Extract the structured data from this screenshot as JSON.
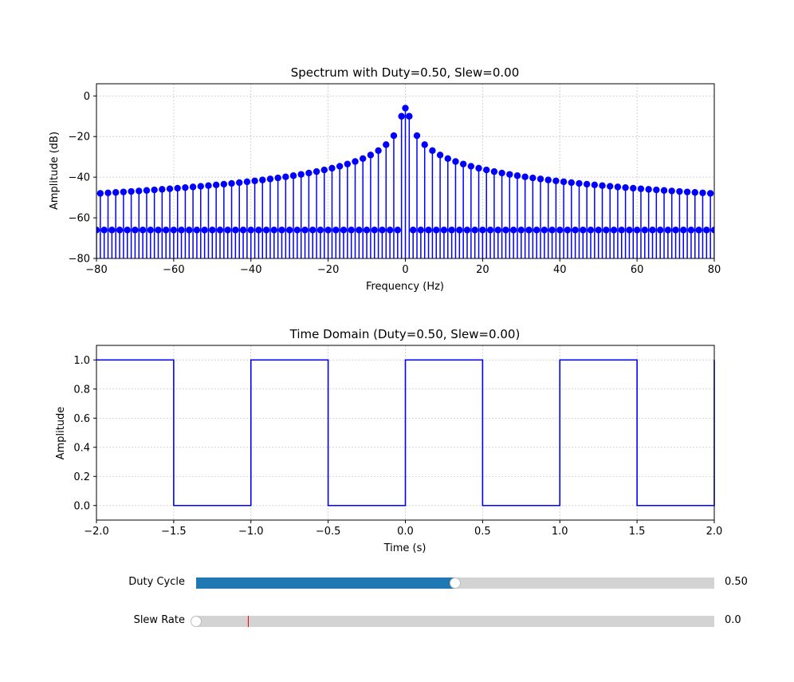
{
  "chart_data": [
    {
      "type": "stem",
      "title": "Spectrum with Duty=0.50, Slew=0.00",
      "xlabel": "Frequency (Hz)",
      "ylabel": "Amplitude (dB)",
      "xlim": [
        -80,
        80
      ],
      "ylim": [
        -80,
        6
      ],
      "xticks": [
        -80,
        -60,
        -40,
        -20,
        0,
        20,
        40,
        60,
        80
      ],
      "yticks": [
        0,
        -20,
        -40,
        -60,
        -80
      ],
      "grid": true,
      "color": "#0000ff",
      "baseline_db": -80,
      "odd_harmonic_fundamental_hz": 1,
      "odd_harmonics_db_at_1hz": -10,
      "dc_db": -6,
      "even_harmonics_db": -66,
      "frequency_step_hz": 1
    },
    {
      "type": "line",
      "title": "Time Domain (Duty=0.50, Slew=0.00)",
      "xlabel": "Time (s)",
      "ylabel": "Amplitude",
      "xlim": [
        -2.0,
        2.0
      ],
      "ylim": [
        -0.1,
        1.1
      ],
      "xticks": [
        -2.0,
        -1.5,
        -1.0,
        -0.5,
        0.0,
        0.5,
        1.0,
        1.5,
        2.0
      ],
      "yticks": [
        0.0,
        0.2,
        0.4,
        0.6,
        0.8,
        1.0
      ],
      "grid": true,
      "color": "#0000ff",
      "x": [
        -2.0,
        -1.5,
        -1.5,
        -1.0,
        -1.0,
        -0.5,
        -0.5,
        0.0,
        0.0,
        0.5,
        0.5,
        1.0,
        1.0,
        1.5,
        1.5,
        2.0,
        2.0
      ],
      "y": [
        1.0,
        1.0,
        0.0,
        0.0,
        1.0,
        1.0,
        0.0,
        0.0,
        1.0,
        1.0,
        0.0,
        0.0,
        1.0,
        1.0,
        0.0,
        0.0,
        1.0
      ]
    }
  ],
  "sliders": {
    "duty": {
      "label": "Duty Cycle",
      "value_text": "0.50",
      "fraction": 0.5,
      "color": "#1f77b4"
    },
    "slew": {
      "label": "Slew Rate",
      "value_text": "0.0",
      "fraction": 0.0,
      "marker_fraction": 0.1,
      "marker_color": "#ff0000"
    }
  }
}
